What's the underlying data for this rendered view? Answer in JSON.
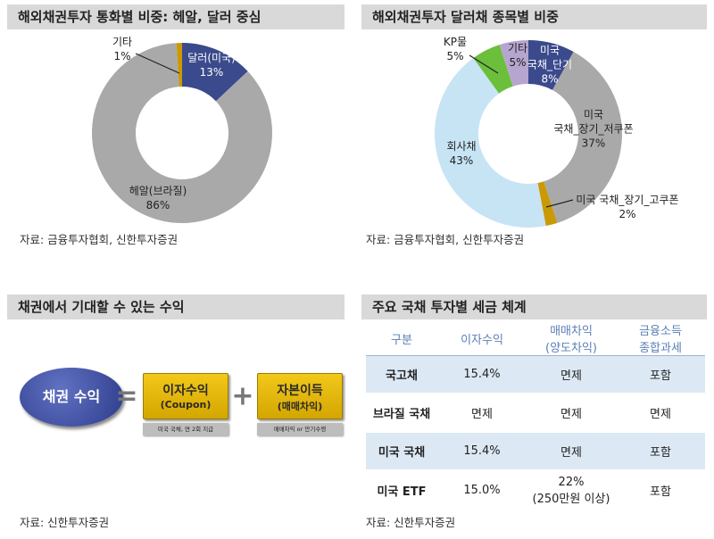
{
  "chart_data": [
    {
      "type": "pie",
      "title": "해외채권투자 통화별 비중: 헤알, 달러 중심",
      "categories": [
        "달러(미국)",
        "헤알(브라질)",
        "기타"
      ],
      "values": [
        13,
        86,
        1
      ],
      "value_labels": [
        "13%",
        "86%",
        "1%"
      ],
      "colors": [
        "#3b4a8c",
        "#a9a9a9",
        "#c99a06"
      ],
      "source": "자료: 금융투자협회, 신한투자증권"
    },
    {
      "type": "pie",
      "title": "해외채권투자 달러채 종목별 비중",
      "categories": [
        "미국\n국채_단기",
        "미국\n국채_장기_저쿠폰",
        "미국 국채_장기_고쿠폰",
        "회사채",
        "KP물",
        "기타"
      ],
      "values": [
        8,
        37,
        2,
        43,
        5,
        5
      ],
      "value_labels": [
        "8%",
        "37%",
        "2%",
        "43%",
        "5%",
        "5%"
      ],
      "colors": [
        "#3b4a8c",
        "#a9a9a9",
        "#c99a06",
        "#c7e4f5",
        "#6bbf3b",
        "#b6a5cf"
      ],
      "source": "자료: 금융투자협회, 신한투자증권"
    }
  ],
  "diagram": {
    "title": "채권에서 기대할 수 있는 수익",
    "main": "채권 수익",
    "equals": "=",
    "plus": "+",
    "boxes": [
      {
        "title": "이자수익",
        "subtitle": "(Coupon)",
        "note": "미국 국채, 연 2회 지급"
      },
      {
        "title": "자본이득",
        "subtitle": "(매매차익)",
        "note": "매매차익 or 만기수령"
      }
    ],
    "source": "자료: 신한투자증권"
  },
  "table": {
    "title": "주요 국채 투자별 세금 체계",
    "header": [
      "구분",
      "이자수익",
      "매매차익\n(양도차익)",
      "금융소득\n종합과세"
    ],
    "rows": [
      [
        "국고채",
        "15.4%",
        "면제",
        "포함"
      ],
      [
        "브라질 국채",
        "면제",
        "면제",
        "면제"
      ],
      [
        "미국 국채",
        "15.4%",
        "면제",
        "포함"
      ],
      [
        "미국 ETF",
        "15.0%",
        "22%\n(250만원 이상)",
        "포함"
      ]
    ],
    "source": "자료: 신한투자증권"
  }
}
